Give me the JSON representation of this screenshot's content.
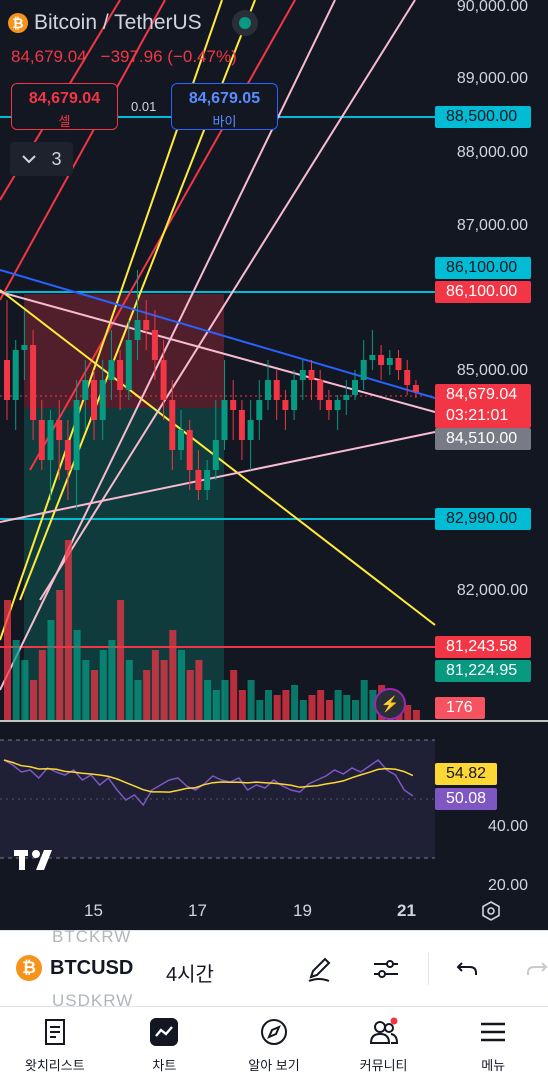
{
  "header": {
    "symbol_title": "Bitcoin / TetherUS",
    "last_price": "84,679.04",
    "change": "−397.96 (−0.47%)"
  },
  "trade": {
    "sell_price": "84,679.04",
    "sell_label": "셀",
    "spread": "0.01",
    "buy_price": "84,679.05",
    "buy_label": "바이"
  },
  "collapse": {
    "count": "3"
  },
  "price_axis": {
    "labels": [
      "90,000.00",
      "89,000.00",
      "88,000.00",
      "87,000.00",
      "85,000.00",
      "82,000.00",
      "40.00",
      "20.00"
    ],
    "tags": {
      "line_88500": "88,500.00",
      "alert_86100_a": "86,100.00",
      "alert_86100_b": "86,100.00",
      "current": "84,679.04",
      "countdown": "03:21:01",
      "line_84510": "84,510.00",
      "line_82990": "82,990.00",
      "line_81243": "81,243.58",
      "line_81224": "81,224.95",
      "volume": "176",
      "rsi": "54.82",
      "rsi_ma": "50.08"
    }
  },
  "time_axis": {
    "labels": [
      "15",
      "17",
      "19",
      "21"
    ]
  },
  "colors": {
    "up": "#089981",
    "down": "#f23645",
    "cyan": "#00bcd4",
    "blue": "#2962ff",
    "yellow": "#ffeb3b",
    "pink": "#f8bbd0",
    "rsi_line": "#7e57c2",
    "rsi_ma": "#fdd835"
  },
  "toolbar": {
    "symbol": "BTCUSD",
    "interval": "4시간",
    "ghost_top": "BTCKRW",
    "ghost_bottom": "USDKRW"
  },
  "nav": [
    {
      "label": "왓치리스트",
      "icon": "watchlist-icon"
    },
    {
      "label": "차트",
      "icon": "chart-icon"
    },
    {
      "label": "알아 보기",
      "icon": "compass-icon"
    },
    {
      "label": "커뮤니티",
      "icon": "community-icon"
    },
    {
      "label": "메뉴",
      "icon": "menu-icon"
    }
  ]
}
